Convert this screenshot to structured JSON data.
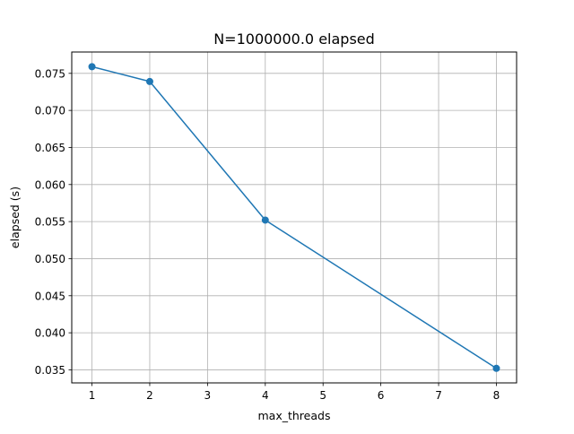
{
  "chart_data": {
    "type": "line",
    "title": "N=1000000.0 elapsed",
    "xlabel": "max_threads",
    "ylabel": "elapsed (s)",
    "xlim": [
      0.65,
      8.35
    ],
    "ylim": [
      0.03324,
      0.07788
    ],
    "xticks": [
      1,
      2,
      3,
      4,
      5,
      6,
      7,
      8
    ],
    "xtick_labels": [
      "1",
      "2",
      "3",
      "4",
      "5",
      "6",
      "7",
      "8"
    ],
    "yticks": [
      0.035,
      0.04,
      0.045,
      0.05,
      0.055,
      0.06,
      0.065,
      0.07,
      0.075
    ],
    "ytick_labels": [
      "0.035",
      "0.040",
      "0.045",
      "0.050",
      "0.055",
      "0.060",
      "0.065",
      "0.070",
      "0.075"
    ],
    "grid": true,
    "series": [
      {
        "x": [
          1,
          2,
          4,
          8
        ],
        "values": [
          0.0759,
          0.0739,
          0.0552,
          0.0352
        ],
        "color": "#1f77b4",
        "marker": "circle"
      }
    ]
  }
}
